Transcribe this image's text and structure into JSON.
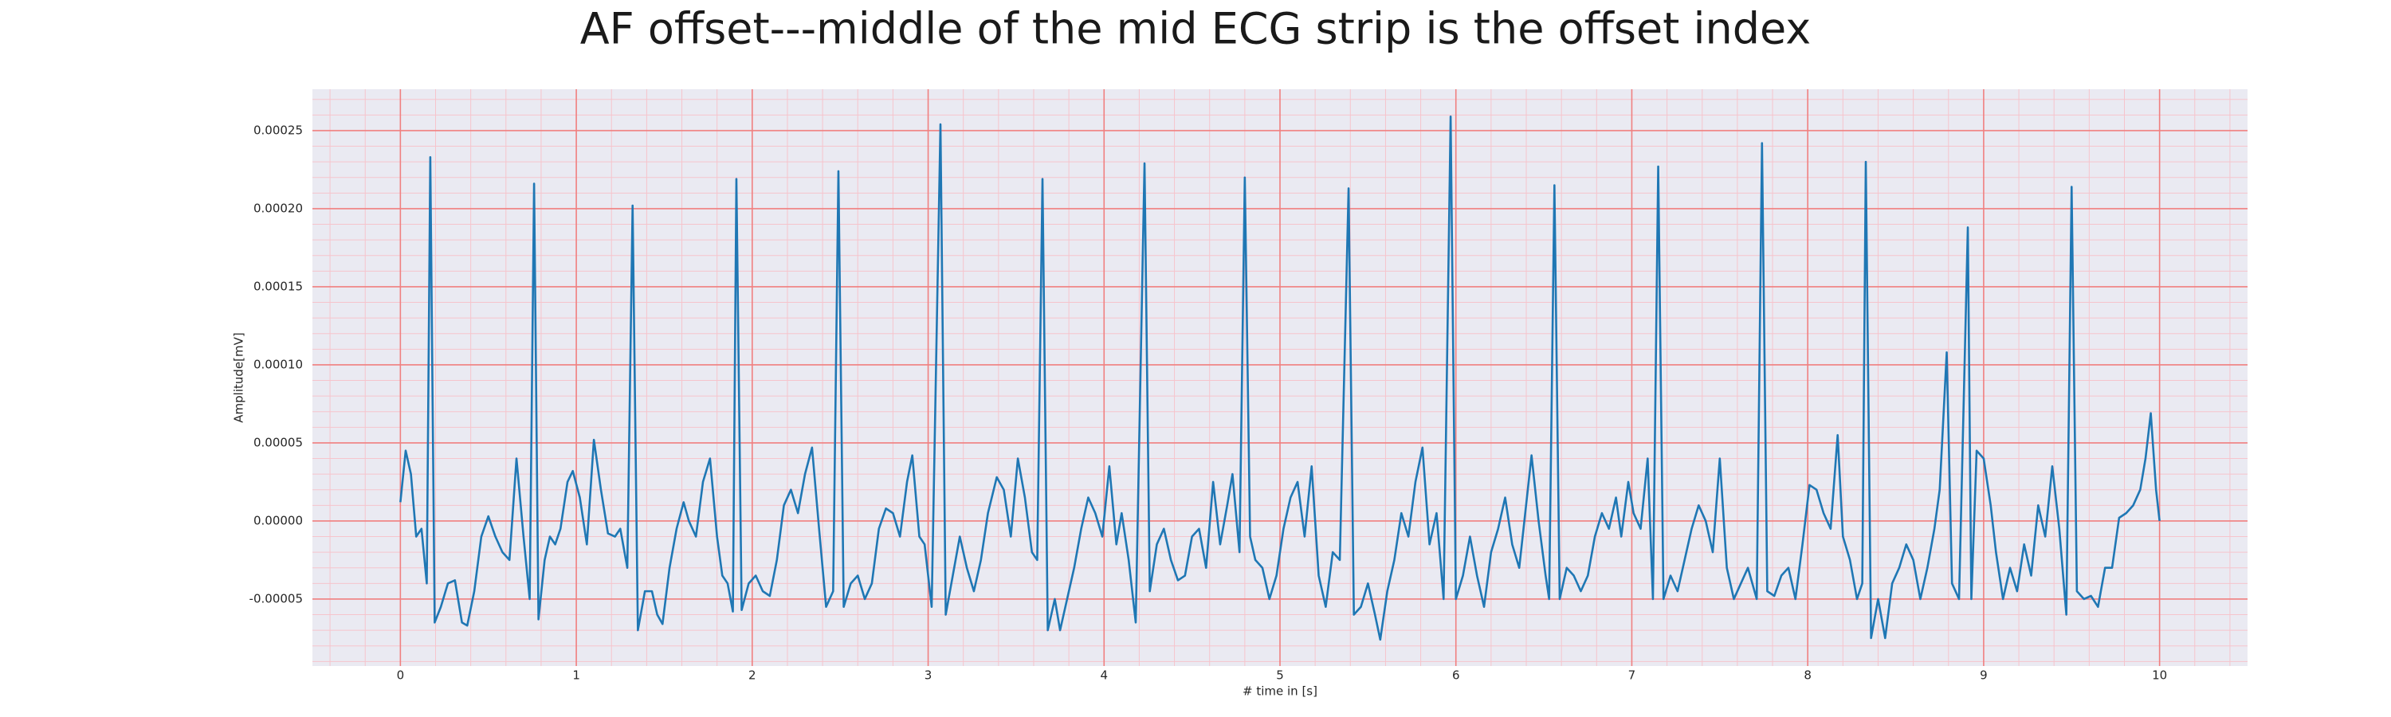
{
  "chart_data": {
    "type": "line",
    "title": "AF offset---middle of the mid ECG strip is the offset index",
    "xlabel": "# time in [s]",
    "ylabel": "Amplitude[mV]",
    "xlim": [
      -0.5,
      10.5
    ],
    "ylim": [
      -9.29e-05,
      0.0002765
    ],
    "xticks": [
      0,
      1,
      2,
      3,
      4,
      5,
      6,
      7,
      8,
      9,
      10
    ],
    "yticks": [
      {
        "value": -5e-05,
        "label": "-0.00005"
      },
      {
        "value": 0,
        "label": "0.00000"
      },
      {
        "value": 5e-05,
        "label": "0.00005"
      },
      {
        "value": 0.0001,
        "label": "0.00010"
      },
      {
        "value": 0.00015,
        "label": "0.00015"
      },
      {
        "value": 0.0002,
        "label": "0.00020"
      },
      {
        "value": 0.00025,
        "label": "0.00025"
      }
    ],
    "x_minor_ticks": [
      -0.4,
      -0.2,
      0,
      0.2,
      0.4,
      0.6,
      0.8,
      1,
      1.2,
      1.4,
      1.6,
      1.8,
      2,
      2.2,
      2.4,
      2.6,
      2.8,
      3,
      3.2,
      3.4,
      3.6,
      3.8,
      4,
      4.2,
      4.4,
      4.6,
      4.8,
      5,
      5.2,
      5.4,
      5.6,
      5.8,
      6,
      6.2,
      6.4,
      6.6,
      6.8,
      7,
      7.2,
      7.4,
      7.6,
      7.8,
      8,
      8.2,
      8.4,
      8.6,
      8.8,
      9,
      9.2,
      9.4,
      9.6,
      9.8,
      10,
      10.2,
      10.4
    ],
    "y_minor_ticks": [
      -9e-05,
      -8e-05,
      -7e-05,
      -6e-05,
      -5e-05,
      -4e-05,
      -3e-05,
      -2e-05,
      -1e-05,
      0,
      1e-05,
      2e-05,
      3e-05,
      4e-05,
      5e-05,
      6e-05,
      7e-05,
      8e-05,
      9e-05,
      0.0001,
      0.00011,
      0.00012,
      0.00013,
      0.00014,
      0.00015,
      0.00016,
      0.00017,
      0.00018,
      0.00019,
      0.0002,
      0.00021,
      0.00022,
      0.00023,
      0.00024,
      0.00025,
      0.00026,
      0.00027
    ],
    "grid": true,
    "grid_color": "#f08080",
    "minor_grid_color": "#f6c4cc",
    "background": "#eaeaf2",
    "x": [
      0,
      0.03,
      0.06,
      0.09,
      0.12,
      0.15,
      0.17,
      0.195,
      0.23,
      0.27,
      0.31,
      0.35,
      0.38,
      0.42,
      0.46,
      0.5,
      0.54,
      0.58,
      0.62,
      0.66,
      0.7,
      0.735,
      0.76,
      0.785,
      0.82,
      0.85,
      0.88,
      0.91,
      0.95,
      0.98,
      1.02,
      1.06,
      1.1,
      1.14,
      1.18,
      1.22,
      1.25,
      1.29,
      1.32,
      1.35,
      1.39,
      1.43,
      1.46,
      1.49,
      1.53,
      1.57,
      1.61,
      1.64,
      1.68,
      1.72,
      1.76,
      1.8,
      1.83,
      1.86,
      1.89,
      1.91,
      1.94,
      1.98,
      2.02,
      2.06,
      2.1,
      2.14,
      2.18,
      2.22,
      2.26,
      2.3,
      2.34,
      2.38,
      2.42,
      2.46,
      2.49,
      2.52,
      2.56,
      2.6,
      2.64,
      2.68,
      2.72,
      2.76,
      2.8,
      2.84,
      2.88,
      2.91,
      2.95,
      2.98,
      3.02,
      3.07,
      3.1,
      3.14,
      3.18,
      3.22,
      3.26,
      3.3,
      3.34,
      3.39,
      3.43,
      3.47,
      3.51,
      3.55,
      3.59,
      3.62,
      3.65,
      3.68,
      3.72,
      3.75,
      3.79,
      3.83,
      3.87,
      3.91,
      3.95,
      3.99,
      4.03,
      4.07,
      4.1,
      4.14,
      4.18,
      4.23,
      4.26,
      4.3,
      4.34,
      4.38,
      4.42,
      4.46,
      4.5,
      4.54,
      4.58,
      4.62,
      4.66,
      4.7,
      4.73,
      4.77,
      4.8,
      4.83,
      4.86,
      4.9,
      4.94,
      4.98,
      5.02,
      5.06,
      5.1,
      5.14,
      5.18,
      5.22,
      5.26,
      5.3,
      5.34,
      5.39,
      5.42,
      5.46,
      5.5,
      5.54,
      5.57,
      5.61,
      5.65,
      5.69,
      5.73,
      5.77,
      5.81,
      5.85,
      5.89,
      5.93,
      5.97,
      6,
      6.04,
      6.08,
      6.12,
      6.16,
      6.2,
      6.24,
      6.28,
      6.32,
      6.36,
      6.43,
      6.47,
      6.51,
      6.53,
      6.56,
      6.59,
      6.63,
      6.67,
      6.71,
      6.75,
      6.79,
      6.83,
      6.87,
      6.91,
      6.94,
      6.98,
      7.01,
      7.05,
      7.09,
      7.12,
      7.15,
      7.18,
      7.22,
      7.26,
      7.3,
      7.34,
      7.38,
      7.42,
      7.46,
      7.5,
      7.54,
      7.58,
      7.62,
      7.66,
      7.71,
      7.74,
      7.77,
      7.81,
      7.85,
      7.89,
      7.93,
      7.97,
      8.01,
      8.05,
      8.09,
      8.13,
      8.17,
      8.2,
      8.24,
      8.28,
      8.31,
      8.33,
      8.36,
      8.4,
      8.44,
      8.48,
      8.52,
      8.56,
      8.6,
      8.64,
      8.68,
      8.72,
      8.75,
      8.79,
      8.82,
      8.86,
      8.91,
      8.93,
      8.96,
      9,
      9.04,
      9.07,
      9.11,
      9.15,
      9.19,
      9.23,
      9.27,
      9.31,
      9.35,
      9.39,
      9.43,
      9.47,
      9.5,
      9.53,
      9.57,
      9.61,
      9.65,
      9.69,
      9.73,
      9.77,
      9.81,
      9.85,
      9.89,
      9.92,
      9.95,
      9.98,
      10
    ],
    "series": [
      {
        "color": "#1f77b4",
        "values": [
          1.2e-05,
          4.5e-05,
          3e-05,
          -1e-05,
          -5e-06,
          -4e-05,
          0.000233,
          -6.5e-05,
          -5.5e-05,
          -4e-05,
          -3.8e-05,
          -6.5e-05,
          -6.7e-05,
          -4.5e-05,
          -1e-05,
          3e-06,
          -1e-05,
          -2e-05,
          -2.5e-05,
          4e-05,
          -1e-05,
          -5e-05,
          0.000216,
          -6.3e-05,
          -2.5e-05,
          -1e-05,
          -1.5e-05,
          -5e-06,
          2.5e-05,
          3.2e-05,
          1.5e-05,
          -1.5e-05,
          5.2e-05,
          2e-05,
          -8e-06,
          -1e-05,
          -5e-06,
          -3e-05,
          0.000202,
          -7e-05,
          -4.5e-05,
          -4.5e-05,
          -6e-05,
          -6.6e-05,
          -3e-05,
          -5e-06,
          1.2e-05,
          0,
          -1e-05,
          2.5e-05,
          4e-05,
          -1e-05,
          -3.5e-05,
          -4e-05,
          -5.8e-05,
          0.000219,
          -5.7e-05,
          -4e-05,
          -3.5e-05,
          -4.5e-05,
          -4.8e-05,
          -2.5e-05,
          1e-05,
          2e-05,
          5e-06,
          3e-05,
          4.7e-05,
          -5e-06,
          -5.5e-05,
          -4.5e-05,
          0.000224,
          -5.5e-05,
          -4e-05,
          -3.5e-05,
          -5e-05,
          -4e-05,
          -5e-06,
          8e-06,
          5e-06,
          -1e-05,
          2.5e-05,
          4.2e-05,
          -1e-05,
          -1.5e-05,
          -5.5e-05,
          0.000254,
          -6e-05,
          -3.5e-05,
          -1e-05,
          -3e-05,
          -4.5e-05,
          -2.5e-05,
          5e-06,
          2.8e-05,
          2e-05,
          -1e-05,
          4e-05,
          1.5e-05,
          -2e-05,
          -2.5e-05,
          0.000219,
          -7e-05,
          -5e-05,
          -7e-05,
          -5e-05,
          -3e-05,
          -5e-06,
          1.5e-05,
          5e-06,
          -1e-05,
          3.5e-05,
          -1.5e-05,
          5e-06,
          -2.5e-05,
          -6.5e-05,
          0.000229,
          -4.5e-05,
          -1.5e-05,
          -5e-06,
          -2.5e-05,
          -3.8e-05,
          -3.5e-05,
          -1e-05,
          -5e-06,
          -3e-05,
          2.5e-05,
          -1.5e-05,
          1e-05,
          3e-05,
          -2e-05,
          0.00022,
          -1e-05,
          -2.5e-05,
          -3e-05,
          -5e-05,
          -3.5e-05,
          -5e-06,
          1.5e-05,
          2.5e-05,
          -1e-05,
          3.5e-05,
          -3.5e-05,
          -5.5e-05,
          -2e-05,
          -2.5e-05,
          0.000213,
          -6e-05,
          -5.5e-05,
          -4e-05,
          -6e-05,
          -7.6e-05,
          -4.5e-05,
          -2.5e-05,
          5e-06,
          -1e-05,
          2.5e-05,
          4.7e-05,
          -1.5e-05,
          5e-06,
          -5e-05,
          0.000259,
          -5e-05,
          -3.5e-05,
          -1e-05,
          -3.5e-05,
          -5.5e-05,
          -2e-05,
          -5e-06,
          1.5e-05,
          -1.5e-05,
          -3e-05,
          4.2e-05,
          0,
          -3.5e-05,
          -5e-05,
          0.000215,
          -5e-05,
          -3e-05,
          -3.5e-05,
          -4.5e-05,
          -3.5e-05,
          -1e-05,
          5e-06,
          -5e-06,
          1.5e-05,
          -1e-05,
          2.5e-05,
          5e-06,
          -5e-06,
          4e-05,
          -5e-05,
          0.000227,
          -5e-05,
          -3.5e-05,
          -4.5e-05,
          -2.5e-05,
          -5e-06,
          1e-05,
          0,
          -2e-05,
          4e-05,
          -3e-05,
          -5e-05,
          -4e-05,
          -3e-05,
          -5e-05,
          0.000242,
          -4.5e-05,
          -4.8e-05,
          -3.5e-05,
          -3e-05,
          -5e-05,
          -1.5e-05,
          2.3e-05,
          2e-05,
          5e-06,
          -5e-06,
          5.5e-05,
          -1e-05,
          -2.5e-05,
          -5e-05,
          -4e-05,
          0.00023,
          -7.5e-05,
          -5e-05,
          -7.5e-05,
          -4e-05,
          -3e-05,
          -1.5e-05,
          -2.5e-05,
          -5e-05,
          -3e-05,
          -5e-06,
          2e-05,
          0.000108,
          -4e-05,
          -5e-05,
          0.000188,
          -5e-05,
          4.5e-05,
          4e-05,
          1e-05,
          -2e-05,
          -5e-05,
          -3e-05,
          -4.5e-05,
          -1.5e-05,
          -3.5e-05,
          1e-05,
          -1e-05,
          3.5e-05,
          -5e-06,
          -6e-05,
          0.000214,
          -4.5e-05,
          -5e-05,
          -4.8e-05,
          -5.5e-05,
          -3e-05,
          -3e-05,
          2e-06,
          5e-06,
          1e-05,
          2e-05,
          4e-05,
          6.9e-05,
          2e-05,
          0
        ]
      }
    ]
  }
}
